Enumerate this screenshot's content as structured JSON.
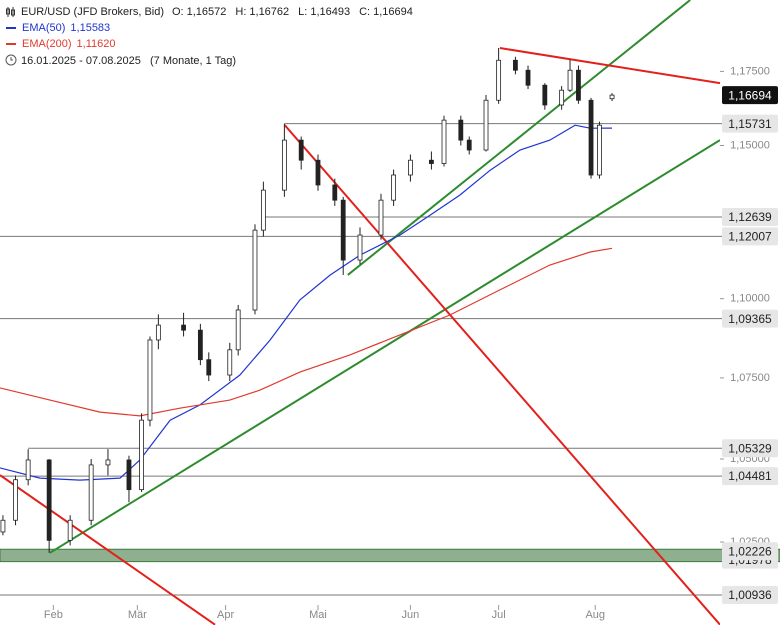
{
  "chart_data": {
    "type": "candlestick",
    "header": {
      "symbol": "EUR/USD (JFD Brokers, Bid)",
      "ohlc": [
        {
          "name": "O:",
          "value": 1.16572,
          "label": "1,16572"
        },
        {
          "name": "H:",
          "value": 1.16762,
          "label": "1,16762"
        },
        {
          "name": "L:",
          "value": 1.16493,
          "label": "1,16493"
        },
        {
          "name": "C:",
          "value": 1.16694,
          "label": "1,16694"
        }
      ],
      "range": "16.01.2025 - 07.08.2025",
      "span": "(7 Monate, 1 Tag)"
    },
    "log_scale": true,
    "xlim": [
      -0.7,
      170.7
    ],
    "ylim": [
      1.0079,
      1.1996
    ],
    "xticks": [
      {
        "value": 12,
        "label": "Feb"
      },
      {
        "value": 32,
        "label": "Mär"
      },
      {
        "value": 53,
        "label": "Apr"
      },
      {
        "value": 75,
        "label": "Mai"
      },
      {
        "value": 97,
        "label": "Jun"
      },
      {
        "value": 118,
        "label": "Jul"
      },
      {
        "value": 141,
        "label": "Aug"
      }
    ],
    "yticks": [
      {
        "value": 1.175,
        "label": "1,17500"
      },
      {
        "value": 1.15,
        "label": "1,15000"
      },
      {
        "value": 1.1,
        "label": "1,10000"
      },
      {
        "value": 1.075,
        "label": "1,07500"
      },
      {
        "value": 1.05,
        "label": "1,05000"
      },
      {
        "value": 1.025,
        "label": "1,02500"
      }
    ],
    "candles": {
      "x": [
        0,
        3,
        6,
        11,
        16,
        21,
        25,
        30,
        33,
        35,
        37,
        43,
        47,
        49,
        54,
        56,
        60,
        62,
        67,
        71,
        75,
        79,
        81,
        85,
        90,
        93,
        97,
        102,
        105,
        109,
        111,
        115,
        118,
        122,
        125,
        129,
        133,
        135,
        137,
        140,
        142,
        145
      ],
      "open": [
        1.028,
        1.0315,
        1.0437,
        1.0497,
        1.0255,
        1.0315,
        1.0482,
        1.0497,
        1.0407,
        1.0619,
        1.0869,
        1.0916,
        1.09,
        1.0807,
        1.0759,
        1.0838,
        1.0964,
        1.1221,
        1.1352,
        1.1518,
        1.1451,
        1.1369,
        1.1319,
        1.1124,
        1.1205,
        1.1319,
        1.1402,
        1.1451,
        1.144,
        1.1585,
        1.1518,
        1.1485,
        1.1652,
        1.1788,
        1.1754,
        1.1703,
        1.1636,
        1.1686,
        1.1754,
        1.1652,
        1.1402,
        1.16572
      ],
      "high": [
        1.033,
        1.045,
        1.053,
        1.05,
        1.033,
        1.05,
        1.053,
        1.051,
        1.064,
        1.088,
        1.095,
        1.0955,
        1.092,
        1.083,
        1.086,
        1.098,
        1.124,
        1.138,
        1.1573,
        1.153,
        1.147,
        1.139,
        1.133,
        1.123,
        1.134,
        1.142,
        1.147,
        1.148,
        1.16,
        1.16,
        1.153,
        1.167,
        1.183,
        1.18,
        1.177,
        1.171,
        1.17,
        1.179,
        1.177,
        1.166,
        1.158,
        1.16762
      ],
      "low": [
        1.027,
        1.03,
        1.042,
        1.0218,
        1.024,
        1.03,
        1.045,
        1.0369,
        1.04,
        1.06,
        1.084,
        1.088,
        1.079,
        1.074,
        1.074,
        1.082,
        1.095,
        1.12,
        1.133,
        1.142,
        1.135,
        1.13,
        1.1076,
        1.111,
        1.119,
        1.13,
        1.138,
        1.142,
        1.143,
        1.15,
        1.147,
        1.148,
        1.164,
        1.174,
        1.169,
        1.162,
        1.162,
        1.168,
        1.164,
        1.139,
        1.139,
        1.16493
      ],
      "close": [
        1.0315,
        1.0437,
        1.0497,
        1.0255,
        1.0315,
        1.0482,
        1.0497,
        1.0407,
        1.0619,
        1.0869,
        1.0916,
        1.09,
        1.0807,
        1.0759,
        1.0838,
        1.0964,
        1.1221,
        1.1352,
        1.1518,
        1.1451,
        1.1369,
        1.1319,
        1.1124,
        1.1205,
        1.1319,
        1.1402,
        1.1451,
        1.144,
        1.1585,
        1.1518,
        1.1485,
        1.1652,
        1.1788,
        1.1754,
        1.1703,
        1.1636,
        1.1686,
        1.1754,
        1.1652,
        1.1402,
        1.1568,
        1.16694
      ]
    },
    "series": [
      {
        "name": "EMA(50)",
        "color": "#2035d0",
        "value_label": "1,15583",
        "x": [
          -0.7,
          8.8,
          18.3,
          27.9,
          32.6,
          39.8,
          46.9,
          56.4,
          63.6,
          70.7,
          77.9,
          85,
          94.5,
          101.7,
          108.8,
          116,
          123.1,
          130.2,
          136.2,
          139.8,
          145
        ],
        "values": [
          1.0473,
          1.0442,
          1.0436,
          1.0442,
          1.0497,
          1.0619,
          1.0666,
          1.0759,
          1.0869,
          1.0996,
          1.1076,
          1.114,
          1.1205,
          1.127,
          1.1336,
          1.1418,
          1.1485,
          1.1518,
          1.1568,
          1.1558,
          1.15583
        ]
      },
      {
        "name": "EMA(200)",
        "color": "#e03a2e",
        "value_label": "1,11620",
        "x": [
          -0.7,
          11.2,
          23.1,
          32.6,
          42.1,
          54,
          61.2,
          70.7,
          82.6,
          94.5,
          106.4,
          118.3,
          130.2,
          139.8,
          145
        ],
        "values": [
          1.0719,
          1.0681,
          1.0644,
          1.0632,
          1.0656,
          1.0681,
          1.0712,
          1.0768,
          1.0822,
          1.0885,
          1.0948,
          1.1028,
          1.1108,
          1.115,
          1.1162
        ]
      }
    ],
    "trendlines": [
      {
        "color": "#2e8b2e",
        "points": [
          [
            11.2,
            1.0218
          ],
          [
            170.7,
            1.1518
          ]
        ]
      },
      {
        "color": "#2e8b2e",
        "points": [
          [
            82.1,
            1.1076
          ],
          [
            163.6,
            1.1996
          ]
        ]
      },
      {
        "color": "#e3201b",
        "points": [
          [
            67.1,
            1.1568
          ],
          [
            170.7,
            1.0007
          ]
        ]
      },
      {
        "color": "#e3201b",
        "points": [
          [
            -0.7,
            1.0451
          ],
          [
            50.5,
            1.0007
          ]
        ]
      },
      {
        "color": "#e3201b",
        "points": [
          [
            118.3,
            1.183
          ],
          [
            170.7,
            1.171
          ]
        ]
      }
    ],
    "zone": {
      "values": [
        1.01978,
        1.02226
      ],
      "color": "#8fb08f"
    },
    "levels": [
      {
        "value": 1.01978,
        "label": "1,01978"
      },
      {
        "value": 1.00936,
        "label": "1,00936",
        "from": -0.7
      },
      {
        "value": 1.04481,
        "label": "1,04481",
        "from": -0.7
      },
      {
        "value": 1.05329,
        "label": "1,05329",
        "from": 6
      },
      {
        "value": 1.09365,
        "label": "1,09365",
        "from": -0.7
      },
      {
        "value": 1.12007,
        "label": "1,12007",
        "from": -0.7
      },
      {
        "value": 1.12639,
        "label": "1,12639",
        "from": 62
      },
      {
        "value": 1.15731,
        "label": "1,15731",
        "from": 67
      },
      {
        "value": 1.02226,
        "label": "1,02226"
      },
      {
        "value": 1.16694,
        "label": "1,16694",
        "current": true
      }
    ]
  }
}
